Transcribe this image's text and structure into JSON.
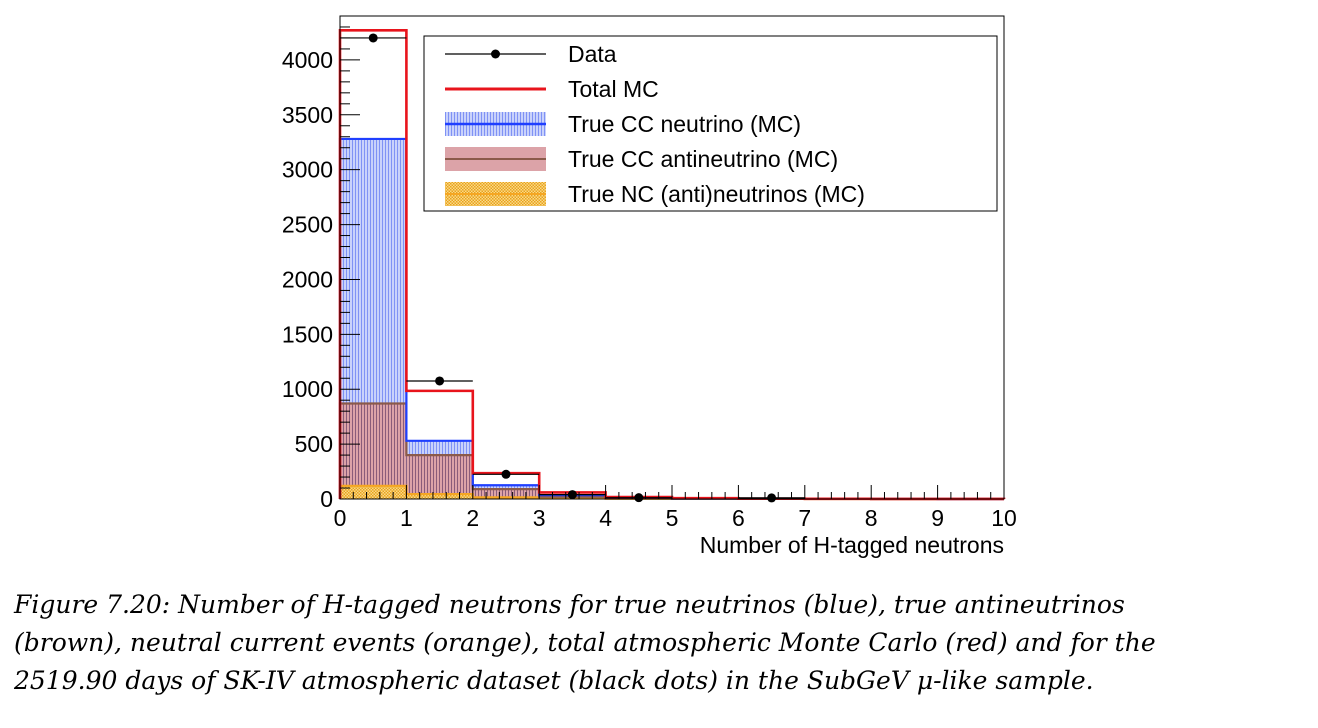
{
  "chart_data": {
    "type": "bar",
    "subtype": "stacked-histogram",
    "xlabel": "Number of H-tagged neutrons",
    "ylabel": "",
    "xlim": [
      0,
      10
    ],
    "ylim": [
      0,
      4400
    ],
    "x_ticks": [
      "0",
      "1",
      "2",
      "3",
      "4",
      "5",
      "6",
      "7",
      "8",
      "9",
      "10"
    ],
    "y_ticks": [
      "0",
      "500",
      "1000",
      "1500",
      "2000",
      "2500",
      "3000",
      "3500",
      "4000"
    ],
    "bin_edges": [
      0,
      1,
      2,
      3,
      4,
      5,
      6,
      7,
      8,
      9,
      10
    ],
    "series": [
      {
        "name": "True NC (anti)neutrinos (MC)",
        "color": "#f5a623",
        "values": [
          120,
          45,
          15,
          5,
          2,
          1,
          0.5,
          0.2,
          0.1,
          0
        ]
      },
      {
        "name": "True CC antineutrino (MC)",
        "color": "#8b5a4a",
        "values": [
          870,
          400,
          90,
          20,
          6,
          2,
          1,
          0.5,
          0.2,
          0
        ]
      },
      {
        "name": "True CC neutrino (MC)",
        "color": "#1f3fff",
        "values": [
          3280,
          530,
          125,
          35,
          10,
          4,
          2,
          1,
          0.5,
          0.2
        ]
      },
      {
        "name": "Total MC",
        "color": "#e8141c",
        "values": [
          4270,
          985,
          235,
          60,
          18,
          7,
          3,
          1.5,
          0.7,
          0.3
        ]
      }
    ],
    "data_points": {
      "name": "Data",
      "x": [
        0.5,
        1.5,
        2.5,
        3.5,
        4.5,
        6.5
      ],
      "y": [
        4200,
        1075,
        225,
        40,
        12,
        10
      ],
      "x_err": 0.5
    },
    "legend_entries": [
      "Data",
      "Total MC",
      "True CC neutrino (MC)",
      "True CC antineutrino (MC)",
      "True NC (anti)neutrinos (MC)"
    ],
    "legend_position": "top-right"
  },
  "caption": {
    "lines": [
      "Figure 7.20: Number of H-tagged neutrons for true neutrinos (blue), true antineutrinos",
      "(brown), neutral current events (orange), total atmospheric Monte Carlo (red) and for the",
      "2519.90 days of SK-IV atmospheric dataset (black dots) in the SubGeV μ-like sample."
    ]
  }
}
